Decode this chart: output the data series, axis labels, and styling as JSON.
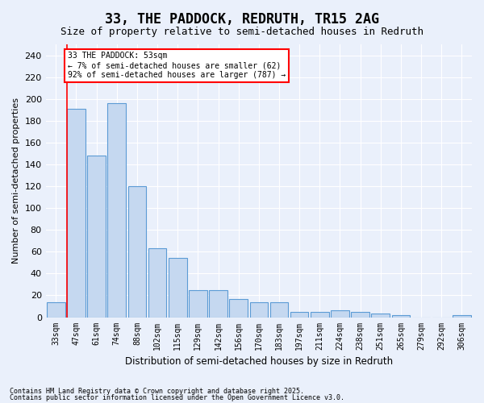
{
  "title": "33, THE PADDOCK, REDRUTH, TR15 2AG",
  "subtitle": "Size of property relative to semi-detached houses in Redruth",
  "xlabel": "Distribution of semi-detached houses by size in Redruth",
  "ylabel": "Number of semi-detached properties",
  "categories": [
    "33sqm",
    "47sqm",
    "61sqm",
    "74sqm",
    "88sqm",
    "102sqm",
    "115sqm",
    "129sqm",
    "142sqm",
    "156sqm",
    "170sqm",
    "183sqm",
    "197sqm",
    "211sqm",
    "224sqm",
    "238sqm",
    "251sqm",
    "265sqm",
    "279sqm",
    "292sqm",
    "306sqm"
  ],
  "values": [
    14,
    191,
    148,
    196,
    120,
    63,
    54,
    25,
    25,
    17,
    14,
    14,
    5,
    5,
    6,
    5,
    3,
    2,
    0,
    0,
    2
  ],
  "bar_color": "#c5d8f0",
  "bar_edge_color": "#5b9bd5",
  "red_line_x": 1,
  "annotation_title": "33 THE PADDOCK: 53sqm",
  "annotation_line1": "← 7% of semi-detached houses are smaller (62)",
  "annotation_line2": "92% of semi-detached houses are larger (787) →",
  "ylim": [
    0,
    250
  ],
  "yticks": [
    0,
    20,
    40,
    60,
    80,
    100,
    120,
    140,
    160,
    180,
    200,
    220,
    240
  ],
  "background_color": "#eaf0fb",
  "grid_color": "#ffffff",
  "footnote1": "Contains HM Land Registry data © Crown copyright and database right 2025.",
  "footnote2": "Contains public sector information licensed under the Open Government Licence v3.0."
}
